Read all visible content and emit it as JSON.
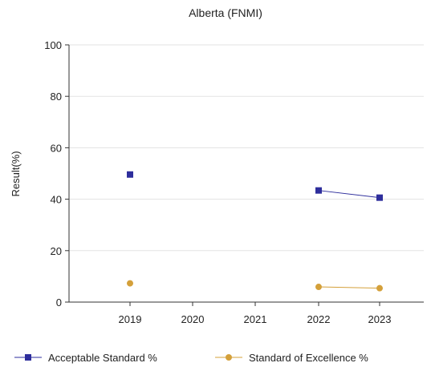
{
  "chart_data": {
    "type": "line",
    "title": "Alberta (FNMI)",
    "xlabel": "",
    "ylabel": "Result(%)",
    "x": [
      "2019",
      "2020",
      "2021",
      "2022",
      "2023"
    ],
    "ylim": [
      0,
      100
    ],
    "yticks": [
      "0",
      "20",
      "40",
      "60",
      "80",
      "100"
    ],
    "grid": true,
    "legend_position": "bottom",
    "series": [
      {
        "name": "Acceptable Standard %",
        "color": "#2e2e9c",
        "marker": "square",
        "values": [
          49.6,
          null,
          null,
          43.4,
          40.6
        ]
      },
      {
        "name": "Standard of Excellence %",
        "color": "#d4a03a",
        "marker": "circle",
        "values": [
          7.3,
          null,
          null,
          5.9,
          5.4
        ]
      }
    ]
  }
}
